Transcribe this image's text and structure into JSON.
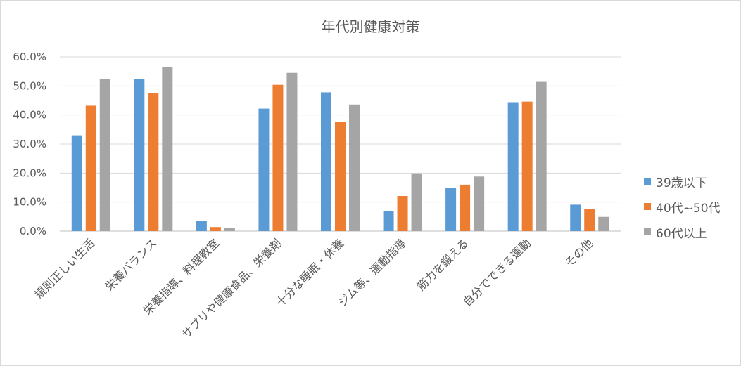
{
  "chart_data": {
    "type": "bar",
    "title": "年代別健康対策",
    "categories": [
      "規則正しい生活",
      "栄養バランス",
      "栄養指導、料理教室",
      "サプリや健康食品、栄養剤",
      "十分な睡眠・休養",
      "ジム等、運動指導",
      "筋力を鍛える",
      "自分でできる運動",
      "その他"
    ],
    "series": [
      {
        "name": "39歳以下",
        "color": "#5b9bd5",
        "values": [
          33.0,
          52.3,
          3.4,
          42.2,
          47.8,
          6.8,
          15.0,
          44.4,
          9.1
        ]
      },
      {
        "name": "40代~50代",
        "color": "#ed7d31",
        "values": [
          43.2,
          47.5,
          1.4,
          50.4,
          37.5,
          12.1,
          16.0,
          44.6,
          7.5
        ]
      },
      {
        "name": "60代以上",
        "color": "#a5a5a5",
        "values": [
          52.5,
          56.6,
          1.1,
          54.5,
          43.6,
          19.9,
          18.8,
          51.4,
          4.9
        ]
      }
    ],
    "yticks": [
      "0.0%",
      "10.0%",
      "20.0%",
      "30.0%",
      "40.0%",
      "50.0%",
      "60.0%"
    ],
    "ylim": [
      0,
      60
    ],
    "grid": true,
    "legend_position": "right"
  }
}
